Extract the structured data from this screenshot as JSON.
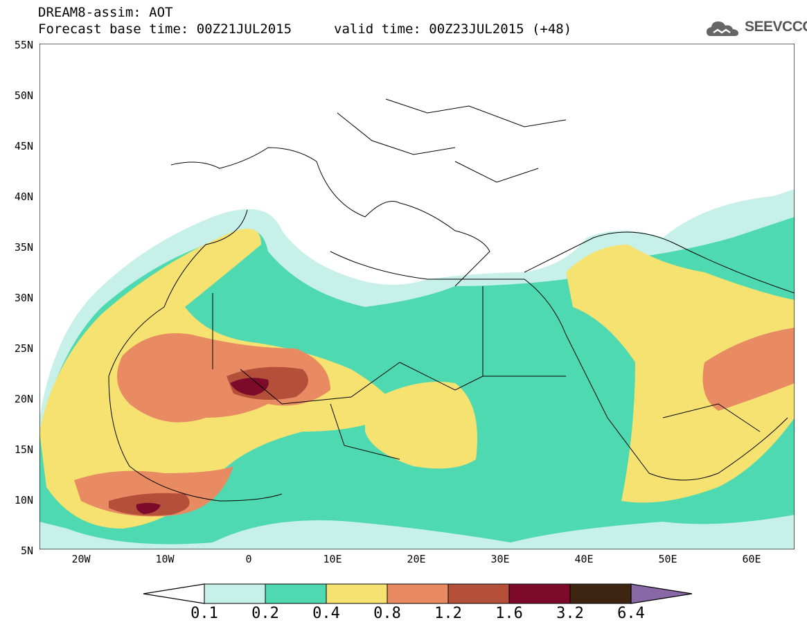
{
  "header": {
    "line1": "DREAM8-assim: AOT",
    "line2": "Forecast base time: 00Z21JUL2015",
    "line3": "valid time: 00Z23JUL2015 (+48)"
  },
  "logo": {
    "text": "SEEVCCC",
    "icon": "cloud-icon"
  },
  "map": {
    "lat_labels": [
      "55N",
      "50N",
      "45N",
      "40N",
      "35N",
      "30N",
      "25N",
      "20N",
      "15N",
      "10N",
      "5N"
    ],
    "lon_labels": [
      "20W",
      "10W",
      "0",
      "10E",
      "20E",
      "30E",
      "40E",
      "50E",
      "60E"
    ],
    "lat_range": [
      5,
      55
    ],
    "lon_range": [
      -25,
      65
    ]
  },
  "colorbar": {
    "levels": [
      "0.1",
      "0.2",
      "0.4",
      "0.8",
      "1.2",
      "1.6",
      "3.2",
      "6.4"
    ],
    "colors": [
      "#ffffff",
      "#c6f0e8",
      "#4fd9b0",
      "#f5e270",
      "#e88a62",
      "#b4503a",
      "#7d0a2a",
      "#3e2512",
      "#8a68a8"
    ]
  }
}
